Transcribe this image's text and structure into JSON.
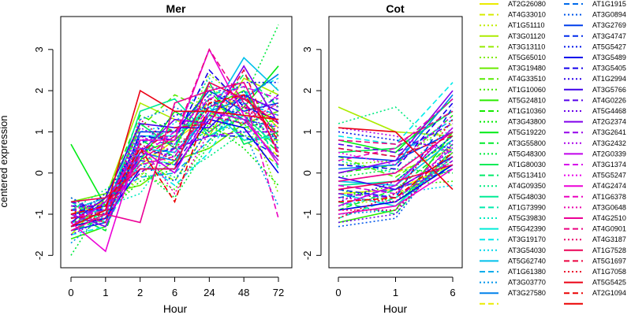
{
  "chart_data": {
    "type": "line",
    "ylabel": "centered expression",
    "xlabel": "Hour",
    "ylim": [
      -2.3,
      3.8
    ],
    "yticks": [
      -2,
      -1,
      0,
      1,
      2,
      3
    ],
    "grid": false,
    "legend_position": "right",
    "panels": [
      {
        "title": "Mer",
        "x_labels": [
          "0",
          "1",
          "2",
          "6",
          "24",
          "48",
          "72"
        ]
      },
      {
        "title": "Cot",
        "x_labels": [
          "0",
          "1",
          "6"
        ]
      }
    ],
    "legend_col1": [
      "AT2G26080",
      "AT4G33010",
      "AT1G51110",
      "AT3G01120",
      "AT3G13110",
      "AT5G65010",
      "AT3G19480",
      "AT4G33510",
      "AT1G10060",
      "AT5G24810",
      "AT1G10360",
      "AT3G43800",
      "AT5G19220",
      "AT3G55800",
      "AT5G48300",
      "AT1G80030",
      "AT5G13410",
      "AT4G09350",
      "AT5G48030",
      "AT1G73990",
      "AT5G39830",
      "AT5G42390",
      "AT3G19170",
      "AT3G54030",
      "AT5G62740",
      "AT1G61380",
      "AT3G03770",
      "AT3G27580"
    ],
    "legend_col2": [
      "AT1G1915",
      "AT3G0894",
      "AT3G2769",
      "AT3G4747",
      "AT5G5427",
      "AT3G5489",
      "AT3G5405",
      "AT1G2994",
      "AT3G5766",
      "AT4G0226",
      "AT5G4468",
      "AT2G2374",
      "AT3G2641",
      "AT3G2432",
      "AT2G0339",
      "AT3G1374",
      "AT5G5247",
      "AT4G2474",
      "AT1G6378",
      "AT3G0648",
      "AT4G2510",
      "AT4G0901",
      "AT4G3187",
      "AT1G7528",
      "AT5G1697",
      "AT1G7058",
      "AT5G5425",
      "AT2G1094"
    ],
    "mer_series": [
      [
        -1.0,
        -0.7,
        0.2,
        0.8,
        1.4,
        1.9,
        1.1
      ],
      [
        -1.2,
        -0.9,
        0.6,
        0.2,
        1.8,
        1.2,
        0.4
      ],
      [
        -0.8,
        -1.0,
        -0.1,
        0.9,
        2.1,
        1.5,
        0.7
      ],
      [
        -1.5,
        -0.6,
        1.7,
        1.3,
        0.9,
        2.3,
        1.9
      ],
      [
        -0.9,
        -0.8,
        0.4,
        -0.2,
        1.1,
        0.8,
        0.2
      ],
      [
        -1.1,
        -1.2,
        0.9,
        0.5,
        2.4,
        1.7,
        -0.5
      ],
      [
        -0.7,
        -0.5,
        -0.3,
        0.3,
        0.6,
        1.2,
        1.5
      ],
      [
        -1.3,
        -0.9,
        1.1,
        1.9,
        1.5,
        0.9,
        0.8
      ],
      [
        -0.6,
        -1.1,
        0.0,
        -0.4,
        0.8,
        1.4,
        2.1
      ],
      [
        -1.6,
        -1.3,
        0.5,
        0.8,
        1.6,
        2.0,
        0.9
      ],
      [
        -0.9,
        -0.6,
        1.4,
        1.0,
        2.0,
        1.1,
        1.3
      ],
      [
        -1.2,
        -1.0,
        -0.2,
        0.1,
        1.2,
        0.6,
        -0.3
      ],
      [
        0.7,
        -0.8,
        0.3,
        1.5,
        1.0,
        1.6,
        2.6
      ],
      [
        -1.0,
        -1.4,
        0.8,
        0.4,
        1.7,
        1.3,
        0.5
      ],
      [
        -2.0,
        -0.7,
        0.1,
        -0.6,
        0.7,
        1.8,
        3.6
      ],
      [
        -0.8,
        -0.9,
        1.2,
        0.6,
        2.2,
        0.7,
        1.0
      ],
      [
        -1.4,
        -1.1,
        0.7,
        1.1,
        1.3,
        2.4,
        1.6
      ],
      [
        -0.9,
        -0.4,
        0.2,
        -0.1,
        0.4,
        1.0,
        1.2
      ],
      [
        -1.1,
        -1.0,
        1.5,
        1.8,
        0.9,
        1.4,
        0.6
      ],
      [
        -0.7,
        -1.2,
        0.4,
        0.2,
        1.9,
        2.1,
        0.1
      ],
      [
        -1.3,
        -0.8,
        -0.5,
        0.7,
        1.0,
        1.5,
        1.8
      ],
      [
        -1.0,
        -0.9,
        0.9,
        0.9,
        1.6,
        0.8,
        0.9
      ],
      [
        -1.5,
        -1.3,
        0.3,
        -0.3,
        0.5,
        1.9,
        2.3
      ],
      [
        -0.8,
        -0.7,
        1.0,
        1.2,
        2.3,
        1.2,
        0.3
      ],
      [
        -1.2,
        -1.1,
        0.6,
        0.5,
        1.4,
        2.8,
        2.0
      ],
      [
        -0.9,
        -0.6,
        -0.1,
        0.0,
        0.8,
        1.7,
        1.4
      ],
      [
        -1.7,
        -1.0,
        1.3,
        1.6,
        1.2,
        1.0,
        -0.8
      ],
      [
        -1.0,
        -0.8,
        0.5,
        0.3,
        1.5,
        1.8,
        2.4
      ],
      [
        -1.2,
        -0.7,
        0.8,
        0.7,
        1.8,
        1.3,
        1.1
      ],
      [
        -0.6,
        -1.0,
        0.2,
        -0.2,
        1.1,
        2.0,
        0.7
      ],
      [
        -1.4,
        -1.2,
        1.0,
        1.0,
        2.0,
        1.5,
        1.7
      ],
      [
        -0.9,
        -0.9,
        0.4,
        0.6,
        0.9,
        0.9,
        0.4
      ],
      [
        -1.1,
        -0.5,
        0.7,
        1.4,
        1.6,
        2.2,
        2.2
      ],
      [
        -1.3,
        -1.1,
        0.1,
        0.1,
        1.3,
        1.1,
        0.0
      ],
      [
        -0.8,
        -0.8,
        0.9,
        0.8,
        2.5,
        1.6,
        1.3
      ],
      [
        -1.0,
        -1.0,
        0.6,
        0.4,
        1.7,
        1.4,
        0.8
      ],
      [
        -1.2,
        -0.6,
        1.2,
        1.1,
        1.1,
        1.9,
        1.5
      ],
      [
        -0.7,
        -0.9,
        0.3,
        0.2,
        1.4,
        1.2,
        1.9
      ],
      [
        -1.5,
        -1.1,
        0.8,
        0.9,
        1.9,
        1.7,
        0.6
      ],
      [
        -1.0,
        -1.3,
        0.5,
        1.3,
        1.2,
        2.6,
        1.2
      ],
      [
        -1.1,
        -0.8,
        0.0,
        0.6,
        0.9,
        1.0,
        1.0
      ],
      [
        -0.9,
        -1.0,
        1.1,
        0.7,
        2.1,
        1.8,
        1.6
      ],
      [
        -1.3,
        -0.7,
        0.6,
        0.0,
        1.5,
        1.3,
        0.3
      ],
      [
        -1.0,
        -1.2,
        0.4,
        1.0,
        1.8,
        2.1,
        1.8
      ],
      [
        -0.8,
        -0.9,
        0.9,
        0.5,
        1.3,
        1.5,
        1.1
      ],
      [
        -1.2,
        -1.9,
        0.8,
        0.8,
        3.0,
        1.4,
        0.2
      ],
      [
        -1.1,
        -0.9,
        0.2,
        0.4,
        1.6,
        1.9,
        -1.1
      ],
      [
        -0.9,
        -0.7,
        0.7,
        -0.5,
        1.0,
        1.6,
        1.4
      ],
      [
        -1.4,
        -1.0,
        -1.2,
        1.7,
        2.0,
        2.2,
        0.5
      ],
      [
        -1.0,
        -0.8,
        0.3,
        0.9,
        3.0,
        1.7,
        0.9
      ],
      [
        -1.2,
        -1.1,
        1.3,
        0.6,
        1.4,
        1.2,
        1.7
      ],
      [
        -0.7,
        -0.6,
        0.1,
        0.1,
        2.2,
        1.8,
        1.2
      ],
      [
        -1.1,
        -1.0,
        0.5,
        1.1,
        1.2,
        2.5,
        0.4
      ],
      [
        -0.9,
        -1.2,
        0.7,
        0.3,
        1.8,
        1.6,
        1.0
      ],
      [
        -1.3,
        -0.9,
        2.0,
        1.5,
        1.5,
        1.4,
        1.3
      ],
      [
        -1.0,
        -0.8,
        0.6,
        -0.7,
        1.7,
        1.9,
        0.8
      ]
    ],
    "cot_series": [
      [
        -0.5,
        -0.4,
        0.2
      ],
      [
        -0.2,
        0.0,
        0.6
      ],
      [
        -0.8,
        -0.6,
        0.4
      ],
      [
        1.6,
        1.0,
        0.9
      ],
      [
        -0.3,
        -0.5,
        0.1
      ],
      [
        0.2,
        0.3,
        1.2
      ],
      [
        -1.0,
        -0.8,
        0.5
      ],
      [
        0.4,
        -0.1,
        0.8
      ],
      [
        -0.6,
        -0.3,
        -0.2
      ],
      [
        -1.2,
        -0.9,
        1.0
      ],
      [
        0.0,
        0.2,
        1.4
      ],
      [
        -0.4,
        -0.7,
        0.3
      ],
      [
        0.8,
        0.5,
        1.8
      ],
      [
        -0.9,
        -0.4,
        0.7
      ],
      [
        -0.1,
        0.1,
        0.0
      ],
      [
        0.5,
        0.6,
        1.5
      ],
      [
        -0.7,
        -1.0,
        0.6
      ],
      [
        1.2,
        1.6,
        0.3
      ],
      [
        -0.3,
        -0.2,
        0.9
      ],
      [
        -1.1,
        -0.6,
        0.2
      ],
      [
        0.3,
        0.0,
        1.1
      ],
      [
        -0.5,
        -0.8,
        0.4
      ],
      [
        0.9,
        0.7,
        2.2
      ],
      [
        -0.8,
        -0.5,
        -0.3
      ],
      [
        -0.2,
        -0.3,
        0.8
      ],
      [
        0.6,
        0.4,
        1.3
      ],
      [
        -1.0,
        -0.9,
        0.5
      ],
      [
        0.1,
        0.2,
        1.9
      ],
      [
        -0.6,
        -0.4,
        0.1
      ],
      [
        -1.3,
        -1.1,
        0.7
      ],
      [
        0.4,
        0.3,
        1.0
      ],
      [
        -0.4,
        -0.6,
        1.6
      ],
      [
        1.0,
        0.8,
        0.6
      ],
      [
        -0.9,
        -0.7,
        0.2
      ],
      [
        0.2,
        0.1,
        1.7
      ],
      [
        -0.7,
        -0.2,
        0.9
      ],
      [
        -0.1,
        -0.4,
        0.4
      ],
      [
        0.7,
        0.5,
        1.2
      ],
      [
        -1.2,
        -1.0,
        0.8
      ],
      [
        0.0,
        0.3,
        2.0
      ],
      [
        -0.5,
        -0.6,
        0.3
      ],
      [
        1.1,
        0.9,
        0.5
      ],
      [
        -0.8,
        -0.3,
        1.1
      ],
      [
        -0.3,
        -0.5,
        0.6
      ],
      [
        0.5,
        0.2,
        1.4
      ],
      [
        -1.0,
        -0.8,
        0.1
      ],
      [
        0.3,
        0.6,
        1.8
      ],
      [
        -0.6,
        -0.7,
        0.7
      ],
      [
        -0.2,
        0.0,
        1.0
      ],
      [
        0.8,
        0.7,
        1.5
      ],
      [
        -0.9,
        -0.9,
        0.4
      ],
      [
        -0.4,
        -0.2,
        0.2
      ],
      [
        0.6,
        0.4,
        0.9
      ],
      [
        -1.1,
        -0.5,
        1.3
      ],
      [
        1.1,
        1.0,
        -0.4
      ],
      [
        -0.7,
        -0.6,
        0.5
      ]
    ]
  }
}
